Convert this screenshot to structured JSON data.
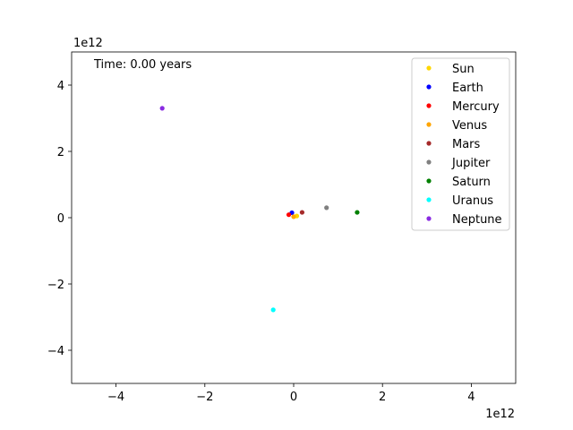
{
  "chart_data": {
    "type": "scatter",
    "title": "",
    "xlabel": "",
    "ylabel": "",
    "xlim": [
      -5000000000000.0,
      5000000000000.0
    ],
    "ylim": [
      -5000000000000.0,
      5000000000000.0
    ],
    "x_scale_label": "1e12",
    "y_scale_label": "1e12",
    "x_ticks": [
      {
        "value": -4000000000000.0,
        "label": "−4"
      },
      {
        "value": -2000000000000.0,
        "label": "−2"
      },
      {
        "value": 0,
        "label": "0"
      },
      {
        "value": 2000000000000.0,
        "label": "2"
      },
      {
        "value": 4000000000000.0,
        "label": "4"
      }
    ],
    "y_ticks": [
      {
        "value": -4000000000000.0,
        "label": "−4"
      },
      {
        "value": -2000000000000.0,
        "label": "−2"
      },
      {
        "value": 0,
        "label": "0"
      },
      {
        "value": 2000000000000.0,
        "label": "2"
      },
      {
        "value": 4000000000000.0,
        "label": "4"
      }
    ],
    "annotation": "Time: 0.00 years",
    "grid": false,
    "legend_position": "upper right",
    "series": [
      {
        "name": "Sun",
        "color": "#ffd700",
        "x": 70000000000.0,
        "y": 50000000000.0
      },
      {
        "name": "Earth",
        "color": "#0000ff",
        "x": -40000000000.0,
        "y": 150000000000.0
      },
      {
        "name": "Mercury",
        "color": "#ff0000",
        "x": -110000000000.0,
        "y": 90000000000.0
      },
      {
        "name": "Venus",
        "color": "#ffa500",
        "x": 0.0,
        "y": 30000000000.0
      },
      {
        "name": "Mars",
        "color": "#a52a2a",
        "x": 190000000000.0,
        "y": 160000000000.0
      },
      {
        "name": "Jupiter",
        "color": "#808080",
        "x": 740000000000.0,
        "y": 300000000000.0
      },
      {
        "name": "Saturn",
        "color": "#008000",
        "x": 1430000000000.0,
        "y": 160000000000.0
      },
      {
        "name": "Uranus",
        "color": "#00ffff",
        "x": -460000000000.0,
        "y": -2780000000000.0
      },
      {
        "name": "Neptune",
        "color": "#8a2be2",
        "x": -2960000000000.0,
        "y": 3300000000000.0
      }
    ]
  }
}
